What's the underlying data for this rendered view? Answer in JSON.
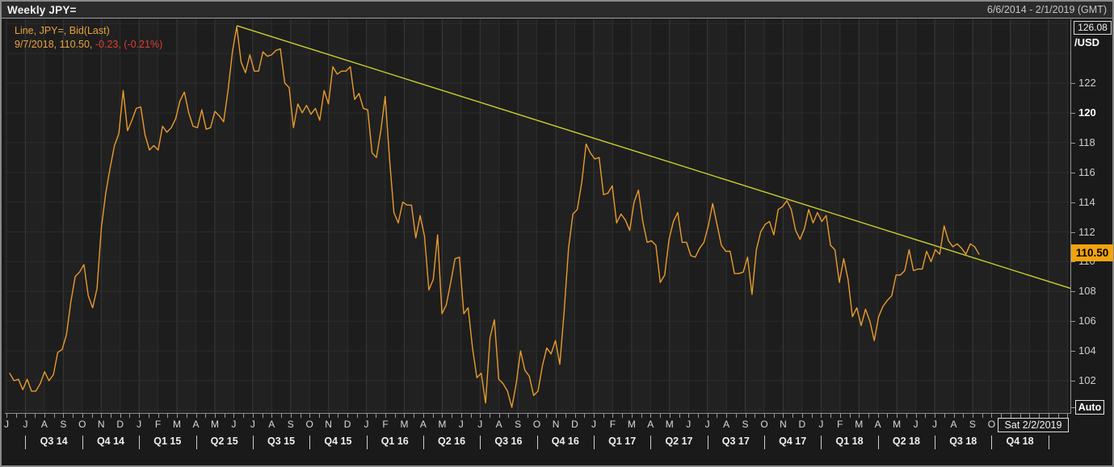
{
  "window": {
    "title": "Weekly JPY=",
    "date_range": "6/6/2014 - 2/1/2019 (GMT)"
  },
  "legend": {
    "line1": "Line, JPY=, Bid(Last)",
    "line2_main": "9/7/2018, 110.50, ",
    "line2_change": "-0.23, (-0.21%)"
  },
  "y_axis": {
    "max_label": "126.08",
    "unit_label": "/USD",
    "last_price_label": "110.50",
    "auto_label": "Auto",
    "ticks": [
      {
        "value": 122,
        "label": "122",
        "bold": false
      },
      {
        "value": 120,
        "label": "120",
        "bold": true
      },
      {
        "value": 118,
        "label": "118",
        "bold": false
      },
      {
        "value": 116,
        "label": "116",
        "bold": false
      },
      {
        "value": 114,
        "label": "114",
        "bold": false
      },
      {
        "value": 112,
        "label": "112",
        "bold": false
      },
      {
        "value": 110,
        "label": "110",
        "bold": false
      },
      {
        "value": 108,
        "label": "108",
        "bold": false
      },
      {
        "value": 106,
        "label": "106",
        "bold": false
      },
      {
        "value": 104,
        "label": "104",
        "bold": false
      },
      {
        "value": 102,
        "label": "102",
        "bold": false
      }
    ]
  },
  "x_axis": {
    "cursor_date_label": "Sat 2/2/2019",
    "month_labels": [
      "J",
      "J",
      "A",
      "S",
      "O",
      "N",
      "D",
      "J",
      "F",
      "M",
      "A",
      "M",
      "J",
      "J",
      "A",
      "S",
      "O",
      "N",
      "D",
      "J",
      "F",
      "M",
      "A",
      "M",
      "J",
      "J",
      "A",
      "S",
      "O",
      "N",
      "D",
      "J",
      "F",
      "M",
      "A",
      "M",
      "J",
      "J",
      "A",
      "S",
      "O",
      "N",
      "D",
      "J",
      "F",
      "M",
      "A",
      "M",
      "J",
      "J",
      "A",
      "S",
      "O"
    ],
    "quarter_labels": [
      "Q3 14",
      "Q4 14",
      "Q1 15",
      "Q2 15",
      "Q3 15",
      "Q4 15",
      "Q1 16",
      "Q2 16",
      "Q3 16",
      "Q4 16",
      "Q1 17",
      "Q2 17",
      "Q3 17",
      "Q4 17",
      "Q1 18",
      "Q2 18",
      "Q3 18",
      "Q4 18"
    ]
  },
  "colors": {
    "line": "#e89b2d",
    "trendline": "#c9ce2f",
    "legend_orange": "#e8a33c",
    "legend_red": "#e03b30",
    "badge_bg": "#f2a30e",
    "grid_h": "#2d2d2d",
    "grid_v": "#2e2e2e",
    "grid_v_bright": "#3a3a3a",
    "band_a": "#1d1d1d",
    "band_b": "#212121",
    "axis_line": "#8f8f8f"
  },
  "chart_data": {
    "type": "line",
    "title": "Weekly JPY=",
    "instrument": "JPY=",
    "field": "Bid(Last)",
    "interval": "weekly",
    "x_start_date": "2014-06-06",
    "x_axis_end_date": "2019-02-01",
    "x_step_days": 7,
    "ylim": [
      99.8,
      126.08
    ],
    "y_tick_step": 2,
    "grid": true,
    "legend_position": "top-left",
    "last_point": {
      "date": "9/7/2018",
      "value": 110.5,
      "change": -0.23,
      "change_pct": "-0.21%"
    },
    "series": [
      {
        "name": "JPY= Bid(Last) weekly",
        "values": [
          102.5,
          102.0,
          102.1,
          101.4,
          102.1,
          101.3,
          101.3,
          101.8,
          102.6,
          102.0,
          102.4,
          103.9,
          104.1,
          105.1,
          107.3,
          109.0,
          109.3,
          109.8,
          107.7,
          106.9,
          108.2,
          112.3,
          114.6,
          116.3,
          117.8,
          118.6,
          121.5,
          118.8,
          119.5,
          120.3,
          120.4,
          118.5,
          117.5,
          117.8,
          117.5,
          119.1,
          118.7,
          119.0,
          119.6,
          120.8,
          121.4,
          120.0,
          119.1,
          119.0,
          120.2,
          118.9,
          119.0,
          120.1,
          119.8,
          119.4,
          121.5,
          124.1,
          125.8,
          123.4,
          122.7,
          123.9,
          122.8,
          122.8,
          124.1,
          123.8,
          123.9,
          124.2,
          124.3,
          122.0,
          121.7,
          119.0,
          120.6,
          120.0,
          120.5,
          119.9,
          120.3,
          119.5,
          121.5,
          120.6,
          123.1,
          122.6,
          122.8,
          122.8,
          123.1,
          120.9,
          121.3,
          120.3,
          120.2,
          117.3,
          117.0,
          118.8,
          121.1,
          116.9,
          113.3,
          112.6,
          114.0,
          113.8,
          113.8,
          111.6,
          113.1,
          111.7,
          108.1,
          108.8,
          111.8,
          106.5,
          107.1,
          108.6,
          110.2,
          110.3,
          106.5,
          106.9,
          104.2,
          102.2,
          102.5,
          100.5,
          104.9,
          106.1,
          102.1,
          101.8,
          101.3,
          100.2,
          101.8,
          104.0,
          102.7,
          102.3,
          101.0,
          101.3,
          103.0,
          104.2,
          103.8,
          104.7,
          103.1,
          106.7,
          110.9,
          113.2,
          113.5,
          115.3,
          117.9,
          117.3,
          116.9,
          117.0,
          114.5,
          114.6,
          115.1,
          112.6,
          113.2,
          112.8,
          112.1,
          114.0,
          114.8,
          112.7,
          111.3,
          111.4,
          111.1,
          108.6,
          109.1,
          111.5,
          112.7,
          113.3,
          111.3,
          111.3,
          110.4,
          110.3,
          110.9,
          111.3,
          112.4,
          113.9,
          112.5,
          111.1,
          110.7,
          110.7,
          109.2,
          109.2,
          109.3,
          110.3,
          107.8,
          110.8,
          112.0,
          112.5,
          112.7,
          111.8,
          113.5,
          113.7,
          114.1,
          113.5,
          112.1,
          111.5,
          112.2,
          113.5,
          112.6,
          113.3,
          112.7,
          113.1,
          111.1,
          110.8,
          108.6,
          110.2,
          108.8,
          106.3,
          106.9,
          105.7,
          106.8,
          106.0,
          104.7,
          106.3,
          107.0,
          107.4,
          107.7,
          109.1,
          109.1,
          109.4,
          110.8,
          109.4,
          109.5,
          109.5,
          110.7,
          110.0,
          110.8,
          110.5,
          112.4,
          111.4,
          111.0,
          111.2,
          110.9,
          110.5,
          111.2,
          111.0,
          110.5
        ]
      }
    ],
    "trendline": {
      "description": "downtrend resistance line",
      "from": {
        "week_index": 52,
        "value": 125.86
      },
      "to": {
        "week_index": 243,
        "value": 108.2
      }
    }
  }
}
